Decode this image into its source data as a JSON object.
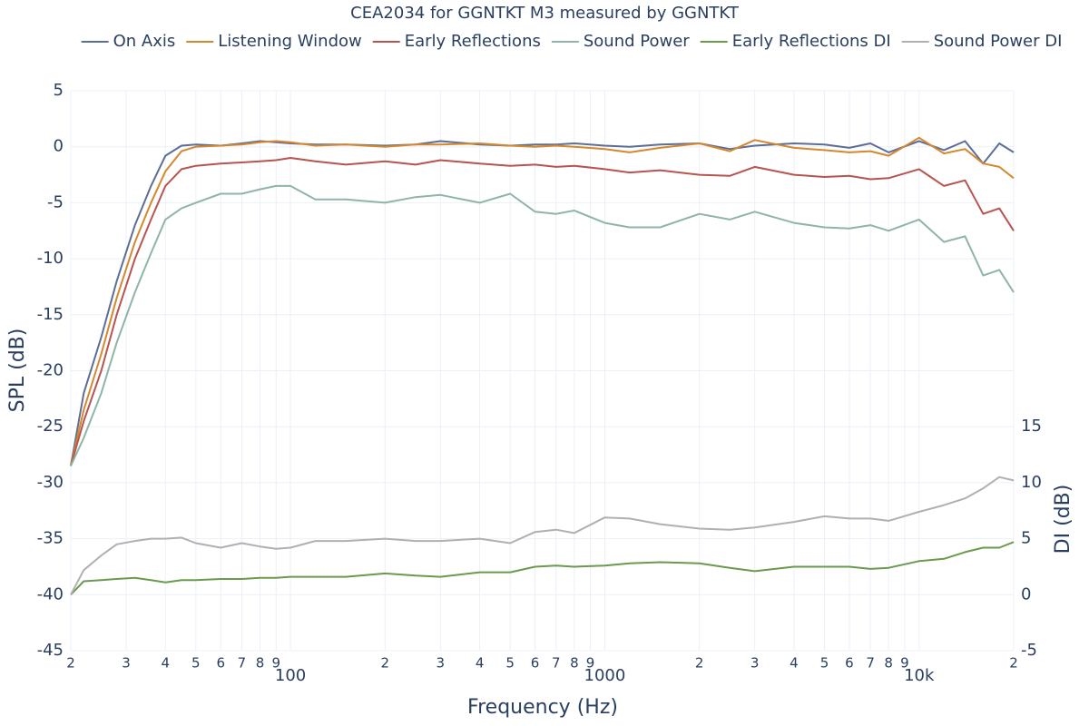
{
  "chart_data": {
    "type": "line",
    "title": "CEA2034 for GGNTKT M3 measured by GGNTKT",
    "x_label": "Frequency (Hz)",
    "y_label": "SPL (dB)",
    "y2_label": "DI (dB)",
    "x_log": true,
    "grid": true,
    "legend": "top",
    "xlim": [
      20,
      20000
    ],
    "ylim": [
      -45,
      5
    ],
    "y2lim": [
      -5,
      15
    ],
    "xticks": [
      {
        "value": 20,
        "label": "2"
      },
      {
        "value": 30,
        "label": "3"
      },
      {
        "value": 40,
        "label": "4"
      },
      {
        "value": 50,
        "label": "5"
      },
      {
        "value": 60,
        "label": "6"
      },
      {
        "value": 70,
        "label": "7"
      },
      {
        "value": 80,
        "label": "8"
      },
      {
        "value": 90,
        "label": "9"
      },
      100,
      {
        "value": 200,
        "label": "2"
      },
      {
        "value": 300,
        "label": "3"
      },
      {
        "value": 400,
        "label": "4"
      },
      {
        "value": 500,
        "label": "5"
      },
      {
        "value": 600,
        "label": "6"
      },
      {
        "value": 700,
        "label": "7"
      },
      {
        "value": 800,
        "label": "8"
      },
      {
        "value": 900,
        "label": "9"
      },
      1000,
      {
        "value": 2000,
        "label": "2"
      },
      {
        "value": 3000,
        "label": "3"
      },
      {
        "value": 4000,
        "label": "4"
      },
      {
        "value": 5000,
        "label": "5"
      },
      {
        "value": 6000,
        "label": "6"
      },
      {
        "value": 7000,
        "label": "7"
      },
      {
        "value": 8000,
        "label": "8"
      },
      {
        "value": 9000,
        "label": "9"
      },
      {
        "value": 10000,
        "label": "10k"
      },
      {
        "value": 20000,
        "label": "2"
      }
    ],
    "yticks": [
      5,
      0,
      -5,
      -10,
      -15,
      -20,
      -25,
      -30,
      -35,
      -40,
      -45
    ],
    "y2ticks": [
      15,
      10,
      5,
      0,
      -5
    ],
    "x": [
      20,
      22,
      25,
      28,
      32,
      36,
      40,
      45,
      50,
      60,
      70,
      80,
      90,
      100,
      120,
      150,
      200,
      250,
      300,
      400,
      500,
      600,
      700,
      800,
      1000,
      1200,
      1500,
      2000,
      2500,
      3000,
      4000,
      5000,
      6000,
      7000,
      8000,
      10000,
      12000,
      14000,
      16000,
      18000,
      20000
    ],
    "series": [
      {
        "name": "On Axis",
        "color": "#5d6e96",
        "values": [
          -28.5,
          -22,
          -17,
          -12,
          -7,
          -3.5,
          -0.8,
          0.1,
          0.2,
          0.1,
          0.3,
          0.5,
          0.4,
          0.3,
          0.2,
          0.2,
          0.1,
          0.2,
          0.5,
          0.2,
          0.1,
          0.2,
          0.2,
          0.3,
          0.1,
          0.0,
          0.2,
          0.3,
          -0.2,
          0.1,
          0.3,
          0.2,
          -0.1,
          0.3,
          -0.5,
          0.5,
          -0.3,
          0.5,
          -1.5,
          0.3,
          -0.5
        ]
      },
      {
        "name": "Listening Window",
        "color": "#d4882e",
        "values": [
          -28.5,
          -23.5,
          -18.5,
          -13.5,
          -8.5,
          -5,
          -2.2,
          -0.4,
          0,
          0.1,
          0.2,
          0.4,
          0.5,
          0.4,
          0.1,
          0.2,
          0,
          0.2,
          0.2,
          0.3,
          0.1,
          0,
          0.1,
          0,
          -0.2,
          -0.5,
          -0.1,
          0.3,
          -0.4,
          0.6,
          -0.1,
          -0.3,
          -0.5,
          -0.4,
          -0.8,
          0.8,
          -0.6,
          -0.2,
          -1.5,
          -1.8,
          -2.8
        ]
      },
      {
        "name": "Early Reflections",
        "color": "#b85450",
        "values": [
          -28.5,
          -24.5,
          -20,
          -15,
          -10,
          -6.5,
          -3.5,
          -2,
          -1.7,
          -1.5,
          -1.4,
          -1.3,
          -1.2,
          -1,
          -1.3,
          -1.6,
          -1.3,
          -1.6,
          -1.2,
          -1.5,
          -1.7,
          -1.6,
          -1.8,
          -1.7,
          -2,
          -2.3,
          -2.1,
          -2.5,
          -2.6,
          -1.8,
          -2.5,
          -2.7,
          -2.6,
          -2.9,
          -2.8,
          -2,
          -3.5,
          -3,
          -6,
          -5.5,
          -7.5
        ]
      },
      {
        "name": "Sound Power",
        "color": "#8fb4a8",
        "values": [
          -28.5,
          -26,
          -22,
          -17.5,
          -13,
          -9.5,
          -6.5,
          -5.5,
          -5,
          -4.2,
          -4.2,
          -3.8,
          -3.5,
          -3.5,
          -4.7,
          -4.7,
          -5,
          -4.5,
          -4.3,
          -5,
          -4.2,
          -5.8,
          -6,
          -5.7,
          -6.8,
          -7.2,
          -7.2,
          -6,
          -6.5,
          -5.8,
          -6.8,
          -7.2,
          -7.3,
          -7,
          -7.5,
          -6.5,
          -8.5,
          -8,
          -11.5,
          -11,
          -13
        ]
      },
      {
        "name": "Early Reflections DI",
        "color": "#6a9a4e",
        "axis": "y2",
        "values": [
          0,
          1.2,
          1.3,
          1.4,
          1.5,
          1.3,
          1.1,
          1.3,
          1.3,
          1.4,
          1.4,
          1.5,
          1.5,
          1.6,
          1.6,
          1.6,
          1.9,
          1.7,
          1.6,
          2,
          2,
          2.5,
          2.6,
          2.5,
          2.6,
          2.8,
          2.9,
          2.8,
          2.4,
          2.1,
          2.5,
          2.5,
          2.5,
          2.3,
          2.4,
          3,
          3.2,
          3.8,
          4.2,
          4.2,
          4.7
        ]
      },
      {
        "name": "Sound Power DI",
        "color": "#b0b0b0",
        "axis": "y2",
        "values": [
          0,
          2.2,
          3.5,
          4.5,
          4.8,
          5,
          5,
          5.1,
          4.6,
          4.2,
          4.6,
          4.3,
          4.1,
          4.2,
          4.8,
          4.8,
          5,
          4.8,
          4.8,
          5,
          4.6,
          5.6,
          5.8,
          5.5,
          6.9,
          6.8,
          6.3,
          5.9,
          5.8,
          6,
          6.5,
          7,
          6.8,
          6.8,
          6.6,
          7.4,
          8,
          8.6,
          9.5,
          10.5,
          10.2
        ]
      }
    ]
  }
}
